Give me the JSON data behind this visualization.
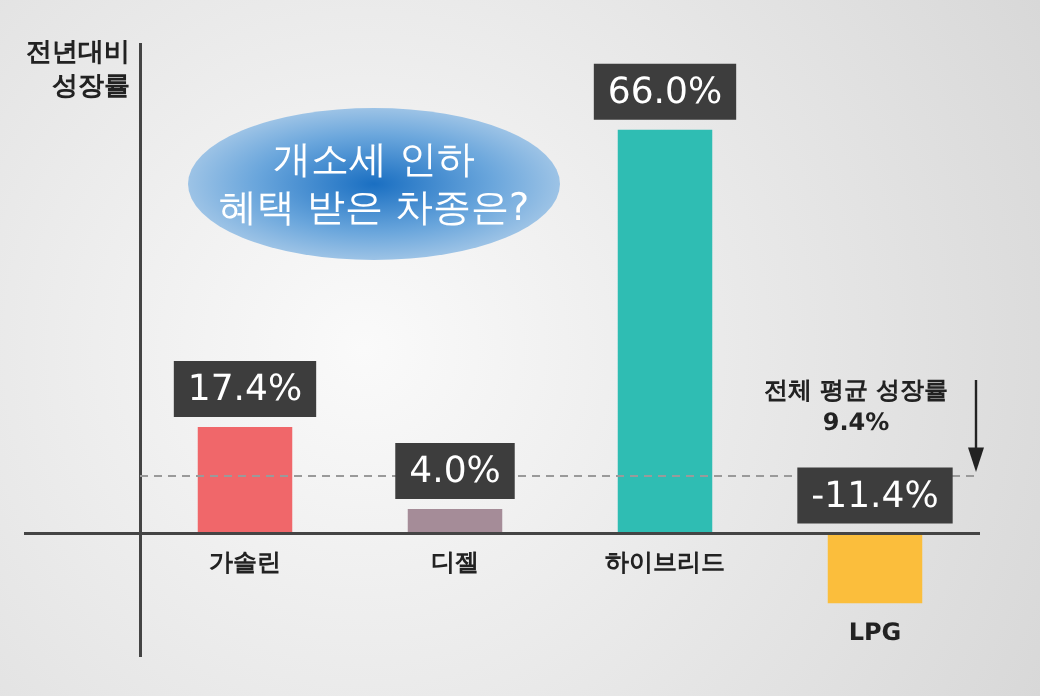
{
  "chart_data": {
    "type": "bar",
    "title": "개소세 인하\n혜택 받은 차종은?",
    "ylabel": "전년대비\n성장률",
    "categories": [
      "가솔린",
      "디젤",
      "하이브리드",
      "LPG"
    ],
    "values": [
      17.4,
      4.0,
      66.0,
      -11.4
    ],
    "colors": [
      "#f0676a",
      "#a58c98",
      "#2fbdb3",
      "#fbbe3c"
    ],
    "value_labels": [
      "17.4%",
      "4.0%",
      "66.0%",
      "-11.4%"
    ],
    "ref_lines": [
      {
        "axis": "y",
        "value": 9.4,
        "label": "전체 평균 성장률\n9.4%",
        "color": "#9a9a9a",
        "line_style": "dashed"
      }
    ],
    "grid": false,
    "legend": false
  }
}
